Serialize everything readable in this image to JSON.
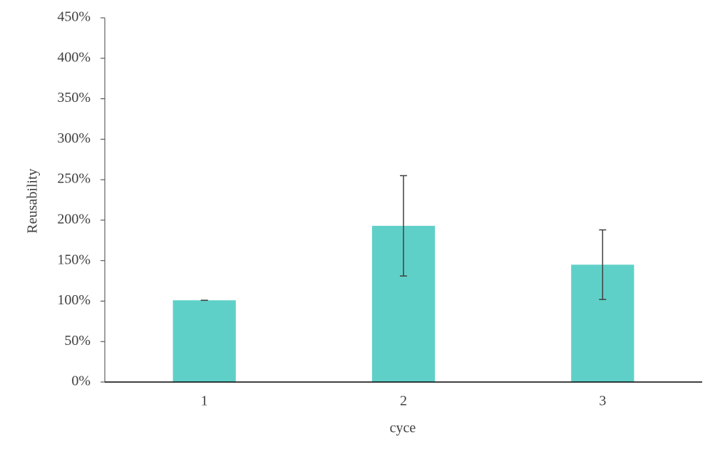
{
  "chart_data": {
    "type": "bar",
    "x_label": "cyce",
    "y_label": "Reusability",
    "categories": [
      "1",
      "2",
      "3"
    ],
    "values": [
      101,
      193,
      145
    ],
    "errors": [
      0,
      62,
      43
    ],
    "color": "#5fd0c8",
    "ylim": [
      0,
      450
    ],
    "yticks": [
      {
        "value": 0,
        "label": "0%"
      },
      {
        "value": 50,
        "label": "50%"
      },
      {
        "value": 100,
        "label": "100%"
      },
      {
        "value": 150,
        "label": "150%"
      },
      {
        "value": 200,
        "label": "200%"
      },
      {
        "value": 250,
        "label": "250%"
      },
      {
        "value": 300,
        "label": "300%"
      },
      {
        "value": 350,
        "label": "350%"
      },
      {
        "value": 400,
        "label": "400%"
      },
      {
        "value": 450,
        "label": "450%"
      }
    ],
    "grid": false
  }
}
